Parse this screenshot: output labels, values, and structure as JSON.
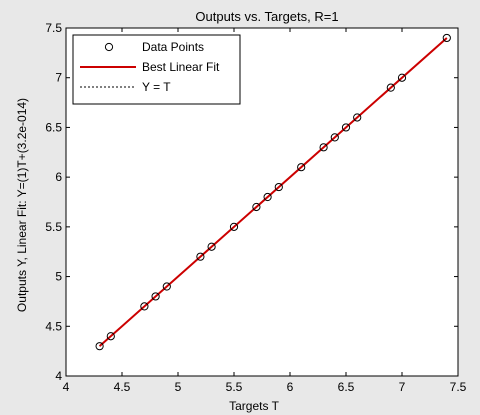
{
  "figure": {
    "background": "#e8e8e8",
    "axes_background": "#ffffff"
  },
  "chart_data": {
    "type": "scatter",
    "title": "Outputs vs. Targets, R=1",
    "xlabel": "Targets T",
    "ylabel": "Outputs Y,  Linear Fit: Y=(1)T+(3.2e-014)",
    "xlim": [
      4,
      7.5
    ],
    "ylim": [
      4,
      7.5
    ],
    "xticks": [
      "4",
      "4.5",
      "5",
      "5.5",
      "6",
      "6.5",
      "7",
      "7.5"
    ],
    "yticks": [
      "4",
      "4.5",
      "5",
      "5.5",
      "6",
      "6.5",
      "7",
      "7.5"
    ],
    "grid": false,
    "legend_position": "top-left",
    "points": {
      "x": [
        4.3,
        4.4,
        4.7,
        4.8,
        4.9,
        5.2,
        5.3,
        5.5,
        5.7,
        5.8,
        5.9,
        6.1,
        6.3,
        6.4,
        6.5,
        6.6,
        6.9,
        7.0,
        7.4
      ],
      "y": [
        4.3,
        4.4,
        4.7,
        4.8,
        4.9,
        5.2,
        5.3,
        5.5,
        5.7,
        5.8,
        5.9,
        6.1,
        6.3,
        6.4,
        6.5,
        6.6,
        6.9,
        7.0,
        7.4
      ]
    },
    "fit": {
      "slope": 1,
      "intercept": 3.2e-14,
      "x_range": [
        4.3,
        7.4
      ]
    },
    "identity": {
      "x_range": [
        4.3,
        7.4
      ]
    },
    "series": [
      {
        "name": "Data Points",
        "marker": "circle",
        "color": "#000000"
      },
      {
        "name": "Best Linear Fit",
        "line": "solid",
        "color": "#cc0000"
      },
      {
        "name": "Y = T",
        "line": "dotted",
        "color": "#000000"
      }
    ]
  }
}
